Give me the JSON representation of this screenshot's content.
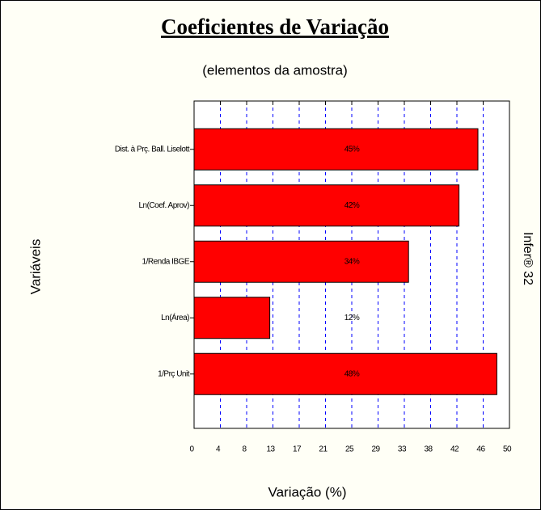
{
  "chart_data": {
    "type": "bar",
    "orientation": "horizontal",
    "title": "Coeficientes de Variação",
    "subtitle": "(elementos da amostra)",
    "x_label": "Variação (%)",
    "y_label": "Variáveis",
    "annotation": "Infer® 32",
    "categories": [
      "Dist. à Prç. Ball. Liselott",
      "Ln(Coef. Aprov)",
      "1/Renda IBGE",
      "Ln(Área)",
      "1/Prç Unit"
    ],
    "values": [
      45,
      42,
      34,
      12,
      48
    ],
    "value_labels": [
      "45%",
      "42%",
      "34%",
      "12%",
      "48%"
    ],
    "color": "#ff0000",
    "xlim": [
      0,
      50
    ],
    "xticks": [
      0,
      {
        "value": 4.1667,
        "label": "4"
      },
      {
        "value": 8.3333,
        "label": "8"
      },
      {
        "value": 12.5,
        "label": "13"
      },
      {
        "value": 16.6667,
        "label": "17"
      },
      {
        "value": 20.8333,
        "label": "21"
      },
      {
        "value": 25,
        "label": "25"
      },
      {
        "value": 29.1667,
        "label": "29"
      },
      {
        "value": 33.3333,
        "label": "33"
      },
      {
        "value": 37.5,
        "label": "38"
      },
      {
        "value": 41.6667,
        "label": "42"
      },
      {
        "value": 45.8333,
        "label": "46"
      },
      50
    ],
    "grid": true,
    "grid_color": "#0000ff"
  }
}
